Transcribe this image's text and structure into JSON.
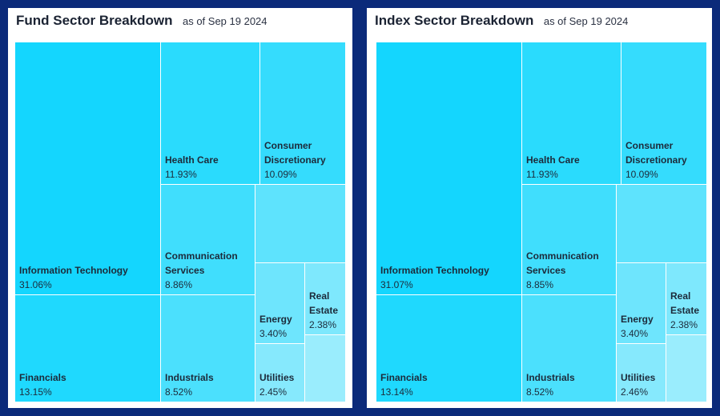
{
  "panels": [
    {
      "title": "Fund Sector Breakdown",
      "date": "as of Sep 19 2024"
    },
    {
      "title": "Index Sector Breakdown",
      "date": "as of Sep 19 2024"
    }
  ],
  "chart_data": [
    {
      "type": "treemap",
      "title": "Fund Sector Breakdown",
      "subtitle": "as of Sep 19 2024",
      "items": [
        {
          "name": "Information Technology",
          "value": 31.06,
          "label": "31.06%",
          "color": "#14d6fe"
        },
        {
          "name": "Financials",
          "value": 13.15,
          "label": "13.15%",
          "color": "#1fd9fe"
        },
        {
          "name": "Health Care",
          "value": 11.93,
          "label": "11.93%",
          "color": "#2adbfd"
        },
        {
          "name": "Consumer Discretionary",
          "value": 10.09,
          "label": "10.09%",
          "color": "#35dcfd"
        },
        {
          "name": "Communication Services",
          "value": 8.86,
          "label": "8.86%",
          "color": "#40defd"
        },
        {
          "name": "Industrials",
          "value": 8.52,
          "label": "8.52%",
          "color": "#4be0fd"
        },
        {
          "name": "",
          "value": null,
          "label": "",
          "color": "#5ee3fd"
        },
        {
          "name": "Energy",
          "value": 3.4,
          "label": "3.40%",
          "color": "#6ee5fd"
        },
        {
          "name": "Real Estate",
          "value": 2.38,
          "label": "2.38%",
          "color": "#7ee8fd"
        },
        {
          "name": "Utilities",
          "value": 2.45,
          "label": "2.45%",
          "color": "#86e9fd"
        },
        {
          "name": "",
          "value": null,
          "label": "",
          "color": "#9aedfd"
        }
      ]
    },
    {
      "type": "treemap",
      "title": "Index Sector Breakdown",
      "subtitle": "as of Sep 19 2024",
      "items": [
        {
          "name": "Information Technology",
          "value": 31.07,
          "label": "31.07%",
          "color": "#14d6fe"
        },
        {
          "name": "Financials",
          "value": 13.14,
          "label": "13.14%",
          "color": "#1fd9fe"
        },
        {
          "name": "Health Care",
          "value": 11.93,
          "label": "11.93%",
          "color": "#2adbfd"
        },
        {
          "name": "Consumer Discretionary",
          "value": 10.09,
          "label": "10.09%",
          "color": "#35dcfd"
        },
        {
          "name": "Communication Services",
          "value": 8.85,
          "label": "8.85%",
          "color": "#40defd"
        },
        {
          "name": "Industrials",
          "value": 8.52,
          "label": "8.52%",
          "color": "#4be0fd"
        },
        {
          "name": "",
          "value": null,
          "label": "",
          "color": "#5ee3fd"
        },
        {
          "name": "Energy",
          "value": 3.4,
          "label": "3.40%",
          "color": "#6ee5fd"
        },
        {
          "name": "Real Estate",
          "value": 2.38,
          "label": "2.38%",
          "color": "#7ee8fd"
        },
        {
          "name": "Utilities",
          "value": 2.46,
          "label": "2.46%",
          "color": "#86e9fd"
        },
        {
          "name": "",
          "value": null,
          "label": "",
          "color": "#9aedfd"
        }
      ]
    }
  ]
}
